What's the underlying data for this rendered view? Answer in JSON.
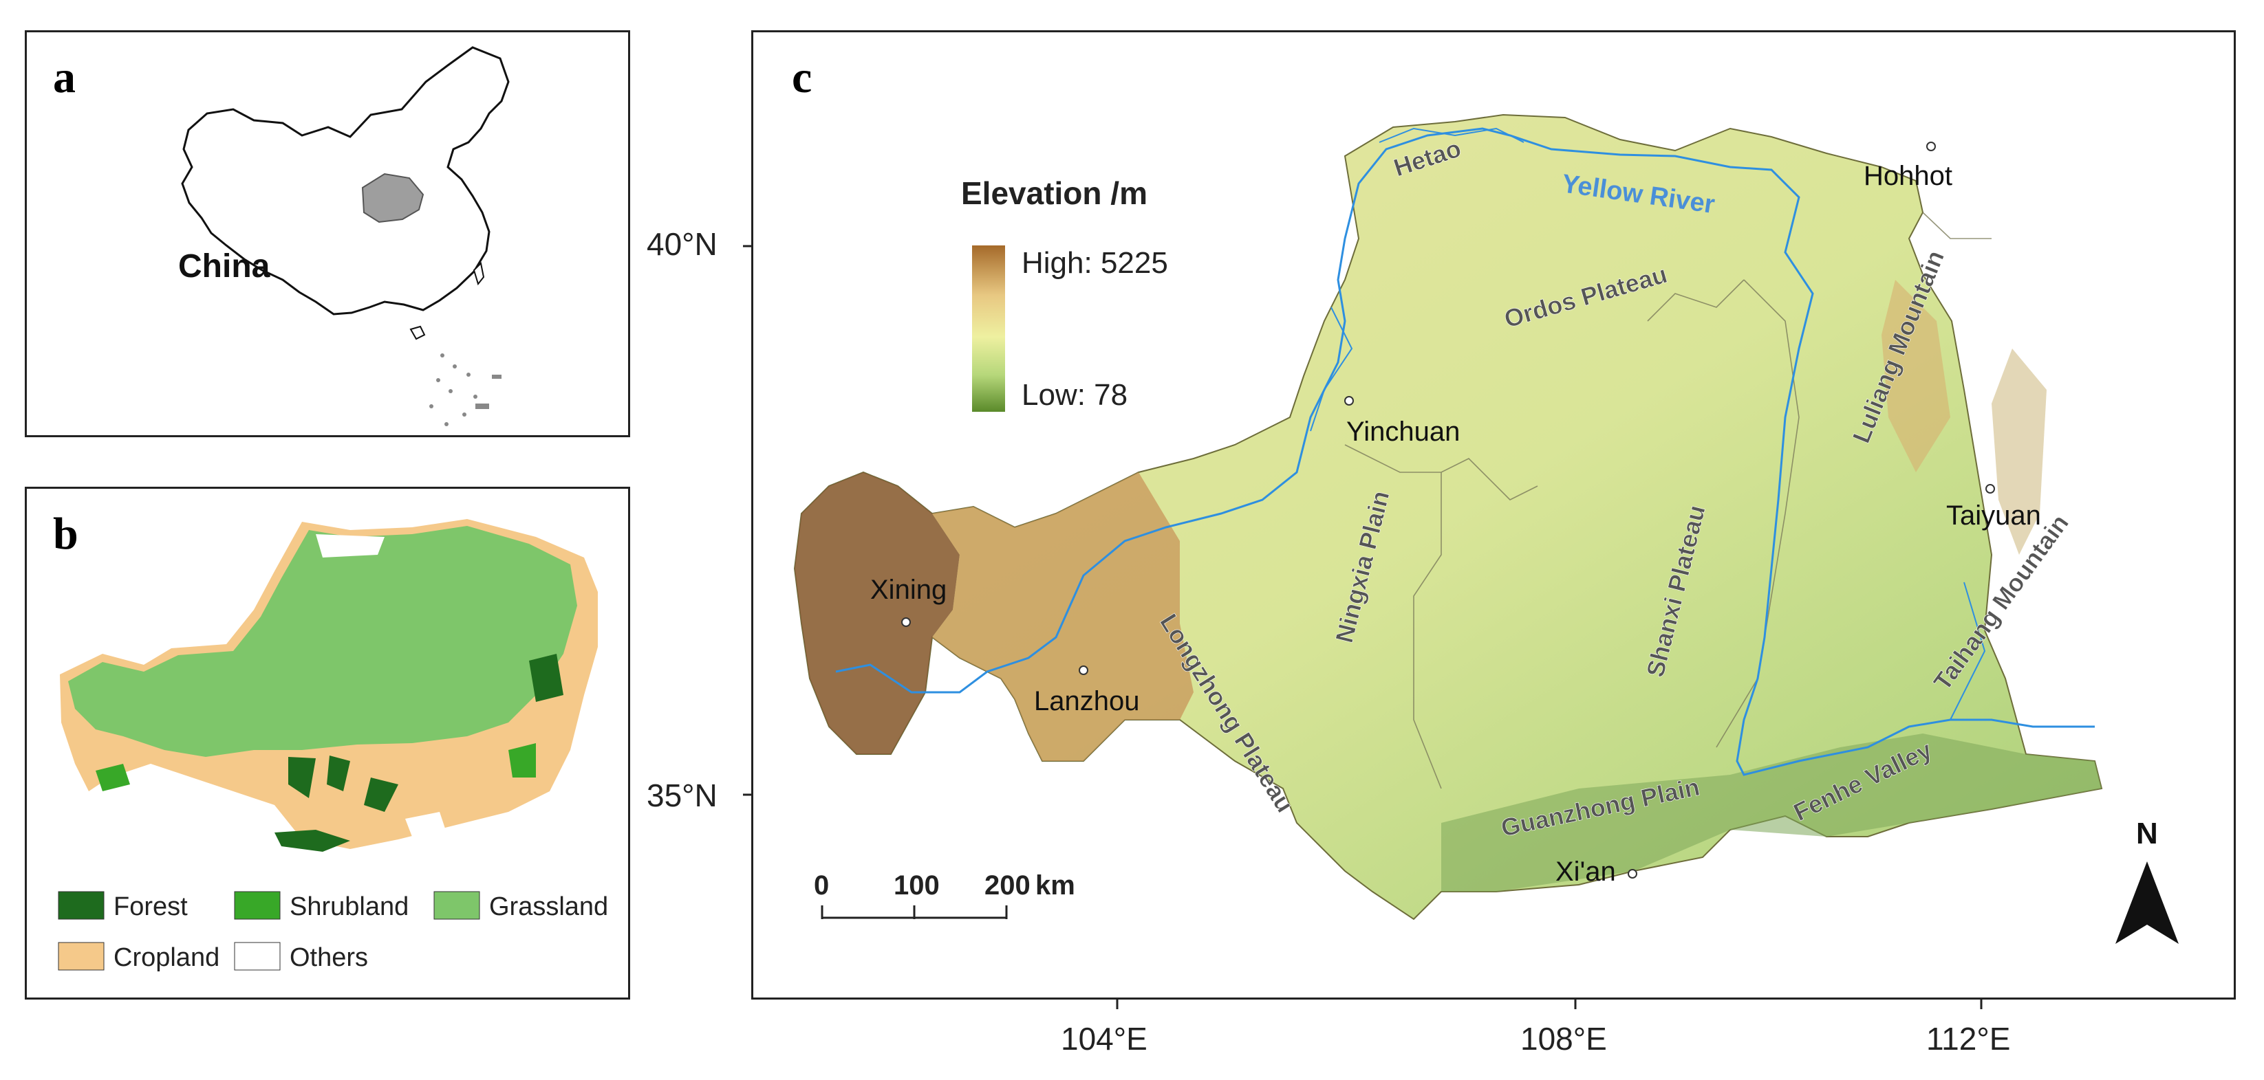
{
  "panels": {
    "a": {
      "letter": "a",
      "country_label": "China"
    },
    "b": {
      "letter": "b",
      "legend": [
        {
          "label": "Forest",
          "color": "#1e6b1e"
        },
        {
          "label": "Shrubland",
          "color": "#38a828"
        },
        {
          "label": "Grassland",
          "color": "#7ec66a"
        },
        {
          "label": "Cropland",
          "color": "#f5c98a"
        },
        {
          "label": "Others",
          "color": "#ffffff"
        }
      ]
    },
    "c": {
      "letter": "c",
      "legend": {
        "title": "Elevation /m",
        "high": "High: 5225",
        "low": "Low: 78",
        "colors": [
          "#a56a2a",
          "#e8c882",
          "#eef0a0",
          "#b6d77a",
          "#5a8a2a"
        ]
      },
      "lat_ticks": [
        "40°N",
        "35°N"
      ],
      "lon_ticks": [
        "104°E",
        "108°E",
        "112°E"
      ],
      "cities": [
        "Hohhot",
        "Yinchuan",
        "Xining",
        "Lanzhou",
        "Taiyuan",
        "Xi'an"
      ],
      "regions": [
        "Hetao",
        "Ordos Plateau",
        "Ningxia Plain",
        "Longzhong Plateau",
        "Shanxi Plateau",
        "Luliang Mountain",
        "Taihang Mountain",
        "Guanzhong Plain",
        "Fenhe Valley"
      ],
      "river": "Yellow River",
      "scale_bar": {
        "ticks": [
          "0",
          "100",
          "200"
        ],
        "unit": "km"
      },
      "north_arrow": "N"
    }
  }
}
